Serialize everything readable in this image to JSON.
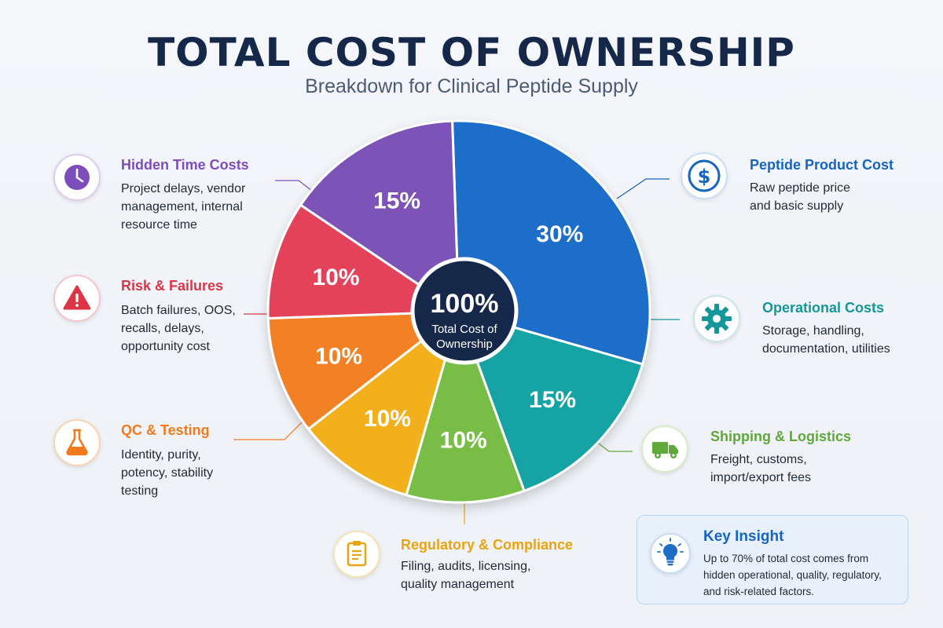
{
  "header": {
    "title": "TOTAL COST OF OWNERSHIP",
    "subtitle": "Breakdown for Clinical Peptide Supply"
  },
  "center": {
    "value": "100%",
    "line1": "Total Cost of",
    "line2": "Ownership"
  },
  "chart_data": {
    "type": "pie",
    "categories": [
      "Peptide Product Cost",
      "Operational Costs",
      "Shipping & Logistics",
      "Regulatory & Compliance",
      "QC & Testing",
      "Risk & Failures",
      "Hidden Time Costs"
    ],
    "values": [
      30,
      15,
      10,
      10,
      10,
      10,
      15
    ],
    "labels": [
      "30%",
      "15%",
      "10%",
      "10%",
      "10%",
      "10%",
      "15%"
    ],
    "colors": [
      "#1e6ec8",
      "#14a3a3",
      "#78bd45",
      "#f2b11d",
      "#f28126",
      "#e3425a",
      "#7d52b8"
    ],
    "center_label": "100%",
    "legend": "callouts around pie"
  },
  "callouts": {
    "product": {
      "title": "Peptide Product Cost",
      "lines": [
        "Raw peptide price",
        "and basic supply"
      ],
      "color": "#1565c0",
      "icon": "dollar-icon"
    },
    "operational": {
      "title": "Operational Costs",
      "lines": [
        "Storage, handling,",
        "documentation, utilities"
      ],
      "color": "#14979b",
      "icon": "gear-icon"
    },
    "shipping": {
      "title": "Shipping & Logistics",
      "lines": [
        "Freight, customs,",
        "import/export fees"
      ],
      "color": "#5fa83a",
      "icon": "truck-icon"
    },
    "regulatory": {
      "title": "Regulatory & Compliance",
      "lines": [
        "Filing, audits, licensing,",
        "quality management"
      ],
      "color": "#e8a412",
      "icon": "clipboard-icon"
    },
    "qc": {
      "title": "QC & Testing",
      "lines": [
        "Identity, purity,",
        "potency, stability",
        "testing"
      ],
      "color": "#f07b1f",
      "icon": "flask-icon"
    },
    "risk": {
      "title": "Risk & Failures",
      "lines": [
        "Batch failures, OOS,",
        "recalls, delays,",
        "opportunity cost"
      ],
      "color": "#dc3545",
      "icon": "warning-icon"
    },
    "hidden": {
      "title": "Hidden Time Costs",
      "lines": [
        "Project delays, vendor",
        "management, internal",
        "resource time"
      ],
      "color": "#7c4dbb",
      "icon": "clock-icon"
    }
  },
  "insight": {
    "title": "Key Insight",
    "lines": [
      "Up to 70% of total cost comes from",
      "hidden operational, quality, regulatory,",
      "and risk-related factors."
    ],
    "icon": "lightbulb-icon"
  }
}
